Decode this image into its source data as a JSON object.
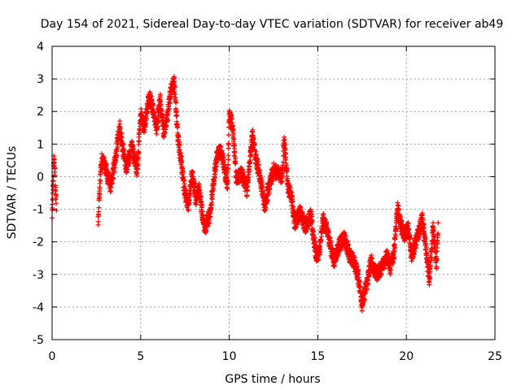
{
  "chart_data": {
    "type": "scatter",
    "title": "Day 154 of 2021, Sidereal Day-to-day VTEC variation (SDTVAR) for receiver ab49",
    "xlabel": "GPS time / hours",
    "ylabel": "SDTVAR / TECUs",
    "xlim": [
      0,
      25
    ],
    "ylim": [
      -5,
      4
    ],
    "xticks": [
      "0",
      "5",
      "10",
      "15",
      "20",
      "25"
    ],
    "yticks": [
      "-5",
      "-4",
      "-3",
      "-2",
      "-1",
      "0",
      "1",
      "2",
      "3",
      "4"
    ],
    "grid": true,
    "marker": "+",
    "color": "#ff0000",
    "series": [
      {
        "name": "SDTVAR",
        "trend": [
          [
            0.0,
            -1.1
          ],
          [
            0.05,
            -0.3
          ],
          [
            0.1,
            0.5
          ],
          [
            0.15,
            0.2
          ],
          [
            0.2,
            -0.5
          ],
          [
            0.25,
            -0.9
          ],
          [
            2.6,
            -1.4
          ],
          [
            2.7,
            -0.2
          ],
          [
            2.8,
            0.5
          ],
          [
            3.0,
            0.3
          ],
          [
            3.3,
            -0.3
          ],
          [
            3.6,
            0.6
          ],
          [
            3.8,
            1.6
          ],
          [
            4.0,
            0.8
          ],
          [
            4.2,
            0.3
          ],
          [
            4.5,
            0.9
          ],
          [
            4.8,
            0.2
          ],
          [
            5.0,
            1.9
          ],
          [
            5.2,
            1.5
          ],
          [
            5.5,
            2.5
          ],
          [
            5.7,
            2.0
          ],
          [
            5.9,
            1.5
          ],
          [
            6.1,
            2.4
          ],
          [
            6.3,
            1.4
          ],
          [
            6.5,
            1.8
          ],
          [
            6.7,
            2.6
          ],
          [
            6.9,
            2.9
          ],
          [
            7.1,
            1.2
          ],
          [
            7.3,
            0.4
          ],
          [
            7.5,
            -0.5
          ],
          [
            7.7,
            -0.9
          ],
          [
            7.9,
            0.1
          ],
          [
            8.1,
            -0.7
          ],
          [
            8.3,
            -0.4
          ],
          [
            8.6,
            -1.6
          ],
          [
            8.9,
            -1.2
          ],
          [
            9.1,
            -0.2
          ],
          [
            9.3,
            0.6
          ],
          [
            9.5,
            0.8
          ],
          [
            9.7,
            0.4
          ],
          [
            9.9,
            -0.3
          ],
          [
            10.0,
            1.9
          ],
          [
            10.2,
            1.5
          ],
          [
            10.4,
            -0.1
          ],
          [
            10.7,
            0.1
          ],
          [
            11.0,
            -0.4
          ],
          [
            11.3,
            1.3
          ],
          [
            11.5,
            0.6
          ],
          [
            11.8,
            -0.2
          ],
          [
            12.0,
            -0.9
          ],
          [
            12.2,
            -0.4
          ],
          [
            12.5,
            0.2
          ],
          [
            12.8,
            0.1
          ],
          [
            13.0,
            0.0
          ],
          [
            13.1,
            1.2
          ],
          [
            13.3,
            -0.3
          ],
          [
            13.5,
            -0.6
          ],
          [
            13.7,
            -1.4
          ],
          [
            14.0,
            -1.1
          ],
          [
            14.3,
            -1.5
          ],
          [
            14.6,
            -1.2
          ],
          [
            14.9,
            -2.4
          ],
          [
            15.1,
            -2.3
          ],
          [
            15.3,
            -1.3
          ],
          [
            15.6,
            -1.8
          ],
          [
            15.9,
            -2.6
          ],
          [
            16.2,
            -2.1
          ],
          [
            16.5,
            -1.9
          ],
          [
            16.8,
            -2.4
          ],
          [
            17.1,
            -2.7
          ],
          [
            17.3,
            -3.1
          ],
          [
            17.5,
            -3.9
          ],
          [
            17.8,
            -3.2
          ],
          [
            18.0,
            -2.6
          ],
          [
            18.3,
            -3.0
          ],
          [
            18.6,
            -2.8
          ],
          [
            18.9,
            -2.4
          ],
          [
            19.1,
            -2.8
          ],
          [
            19.3,
            -2.3
          ],
          [
            19.5,
            -1.0
          ],
          [
            19.7,
            -1.5
          ],
          [
            19.9,
            -1.8
          ],
          [
            20.1,
            -1.6
          ],
          [
            20.3,
            -2.4
          ],
          [
            20.6,
            -1.9
          ],
          [
            20.9,
            -1.3
          ],
          [
            21.1,
            -2.2
          ],
          [
            21.3,
            -3.2
          ],
          [
            21.5,
            -1.6
          ],
          [
            21.7,
            -2.7
          ],
          [
            21.8,
            -1.4
          ]
        ]
      }
    ]
  }
}
